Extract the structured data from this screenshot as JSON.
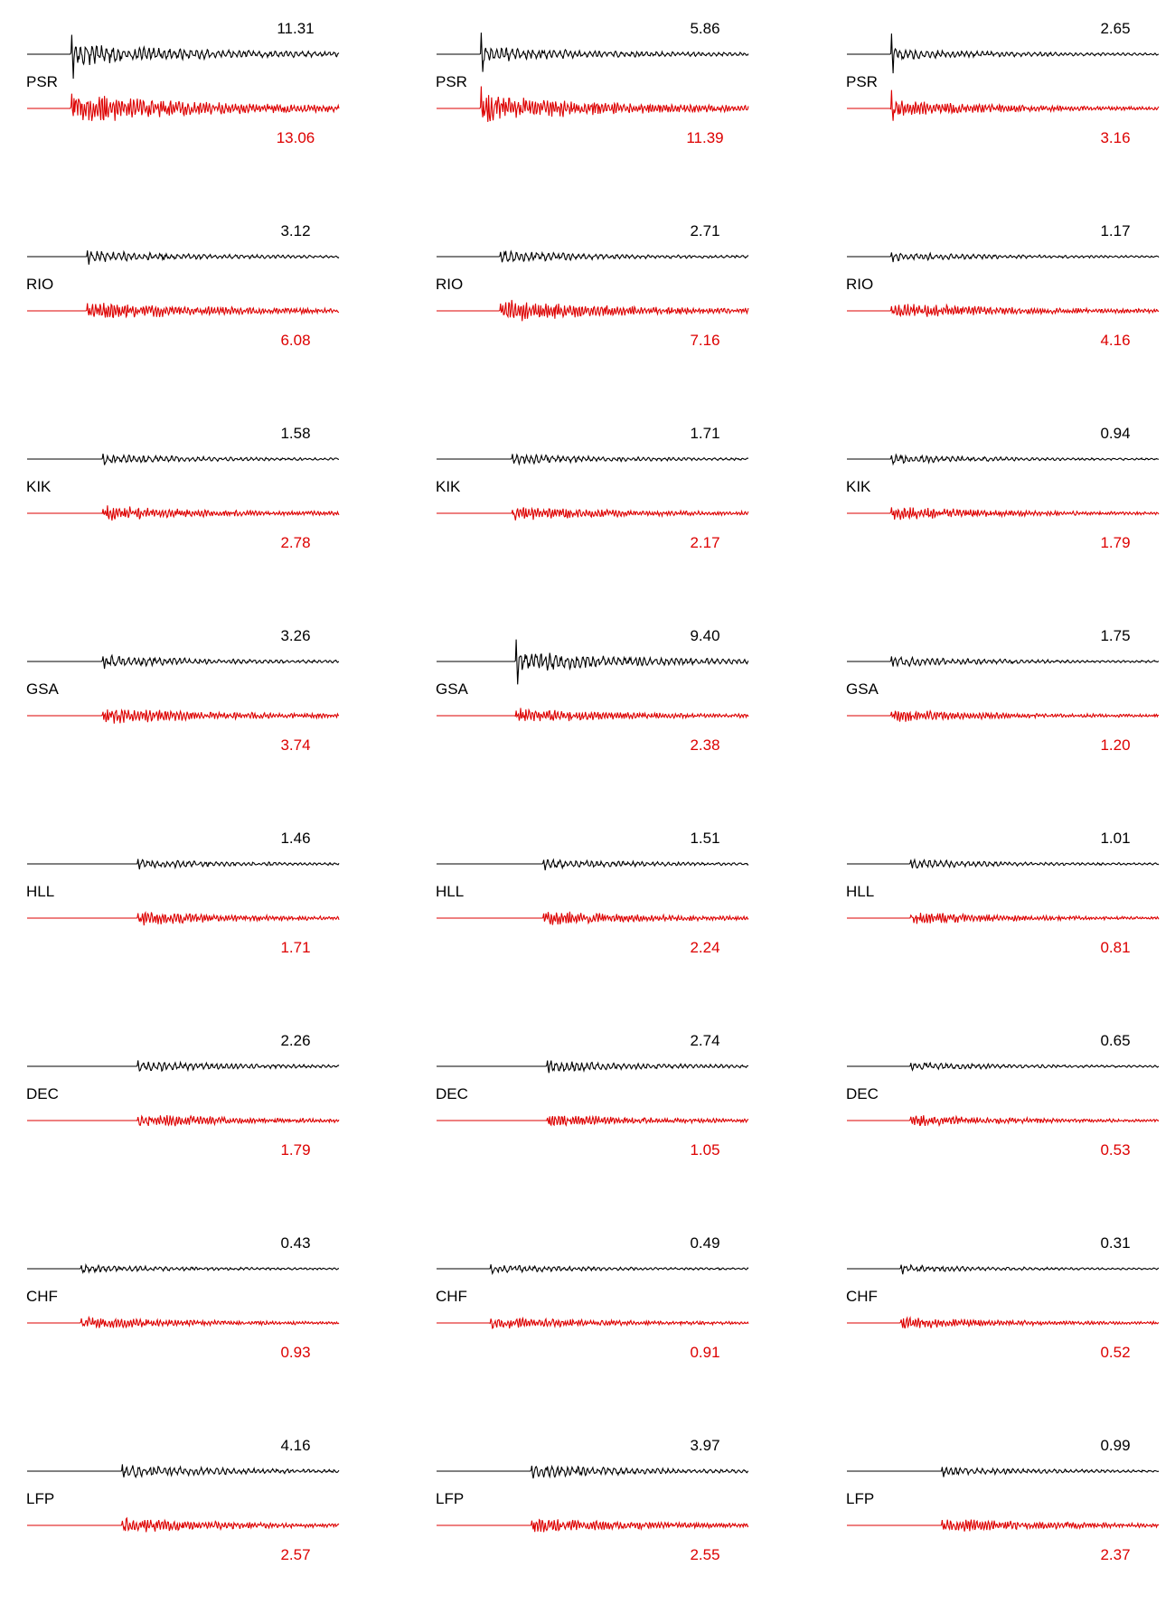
{
  "chart_data": {
    "type": "line",
    "title": "",
    "layout": "8 rows (stations) x 3 columns (components); each panel shows an observed black trace above a red trace, each with its peak amplitude label",
    "colors": {
      "black_trace": "#000000",
      "red_trace": "#dd0000",
      "background": "#ffffff"
    },
    "columns": [
      "col1",
      "col2",
      "col3"
    ],
    "series_colors": [
      "#000000",
      "#dd0000"
    ],
    "stations": [
      {
        "name": "PSR",
        "black": [
          "11.31",
          "5.86",
          "2.65"
        ],
        "red": [
          "13.06",
          "11.39",
          "3.16"
        ]
      },
      {
        "name": "RIO",
        "black": [
          "3.12",
          "2.71",
          "1.17"
        ],
        "red": [
          "6.08",
          "7.16",
          "4.16"
        ]
      },
      {
        "name": "KIK",
        "black": [
          "1.58",
          "1.71",
          "0.94"
        ],
        "red": [
          "2.78",
          "2.17",
          "1.79"
        ]
      },
      {
        "name": "GSA",
        "black": [
          "3.26",
          "9.40",
          "1.75"
        ],
        "red": [
          "3.74",
          "2.38",
          "1.20"
        ]
      },
      {
        "name": "HLL",
        "black": [
          "1.46",
          "1.51",
          "1.01"
        ],
        "red": [
          "1.71",
          "2.24",
          "0.81"
        ]
      },
      {
        "name": "DEC",
        "black": [
          "2.26",
          "2.74",
          "0.65"
        ],
        "red": [
          "1.79",
          "1.05",
          "0.53"
        ]
      },
      {
        "name": "CHF",
        "black": [
          "0.43",
          "0.49",
          "0.31"
        ],
        "red": [
          "0.93",
          "0.91",
          "0.52"
        ]
      },
      {
        "name": "LFP",
        "black": [
          "4.16",
          "3.97",
          "0.99"
        ],
        "red": [
          "2.57",
          "2.55",
          "2.37"
        ]
      }
    ]
  }
}
